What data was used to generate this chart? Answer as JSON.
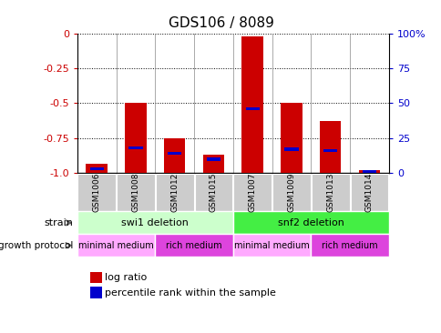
{
  "title": "GDS106 / 8089",
  "samples": [
    "GSM1006",
    "GSM1008",
    "GSM1012",
    "GSM1015",
    "GSM1007",
    "GSM1009",
    "GSM1013",
    "GSM1014"
  ],
  "log_ratios": [
    -0.93,
    -0.5,
    -0.75,
    -0.87,
    -0.02,
    -0.5,
    -0.63,
    -0.98
  ],
  "percentile_ranks": [
    3,
    18,
    14,
    10,
    46,
    17,
    16,
    1
  ],
  "ylim_left": [
    -1.0,
    0.0
  ],
  "ylim_right": [
    0,
    100
  ],
  "left_ticks": [
    0,
    -0.25,
    -0.5,
    -0.75,
    -1.0
  ],
  "right_ticks": [
    0,
    25,
    50,
    75,
    100
  ],
  "strain_groups": [
    {
      "label": "swi1 deletion",
      "start": 0,
      "end": 4,
      "color": "#ccffcc"
    },
    {
      "label": "snf2 deletion",
      "start": 4,
      "end": 8,
      "color": "#44ee44"
    }
  ],
  "growth_groups": [
    {
      "label": "minimal medium",
      "start": 0,
      "end": 2,
      "color": "#ffaaff"
    },
    {
      "label": "rich medium",
      "start": 2,
      "end": 4,
      "color": "#dd44dd"
    },
    {
      "label": "minimal medium",
      "start": 4,
      "end": 6,
      "color": "#ffaaff"
    },
    {
      "label": "rich medium",
      "start": 6,
      "end": 8,
      "color": "#dd44dd"
    }
  ],
  "bar_color": "#cc0000",
  "percentile_color": "#0000cc",
  "axis_color_left": "#cc0000",
  "axis_color_right": "#0000cc",
  "bar_width": 0.55,
  "bg_color": "#ffffff",
  "xtick_bg": "#cccccc",
  "xtick_border": "#888888"
}
